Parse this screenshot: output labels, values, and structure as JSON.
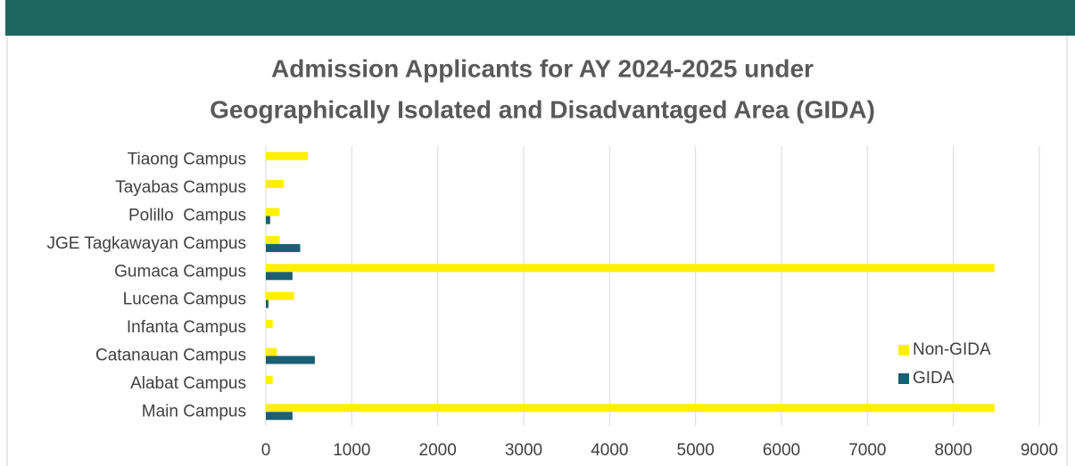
{
  "chart_data": {
    "type": "hbar",
    "title": "Admission Applicants for AY 2024-2025 under",
    "subtitle": "Geographically Isolated and Disadvantaged Area (GIDA)",
    "categories": [
      "Main Campus",
      "Alabat Campus",
      "Catanauan Campus",
      "Infanta Campus",
      "Lucena Campus",
      "Gumaca Campus",
      "JGE Tagkawayan Campus",
      "Polillo  Campus",
      "Tayabas Campus",
      "Tiaong Campus"
    ],
    "series": [
      {
        "name": "Non-GIDA",
        "color": "#ffef00",
        "values": [
          8480,
          80,
          130,
          80,
          330,
          8480,
          160,
          160,
          210,
          490
        ]
      },
      {
        "name": "GIDA",
        "color": "#1a5f73",
        "values": [
          310,
          0,
          570,
          0,
          30,
          310,
          400,
          50,
          0,
          0
        ]
      }
    ],
    "xlim": [
      0,
      9000
    ],
    "xticks": [
      0,
      1000,
      2000,
      3000,
      4000,
      5000,
      6000,
      7000,
      8000,
      9000
    ],
    "grid": true,
    "legend": "right"
  }
}
